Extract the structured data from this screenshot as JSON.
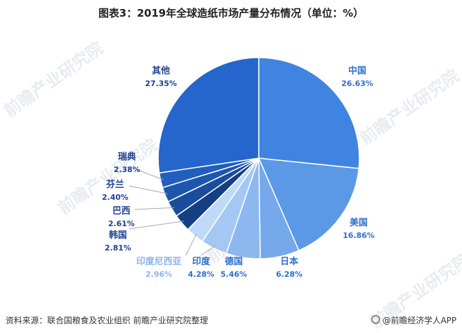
{
  "title": "图表3：2019年全球造纸市场产量分布情况（单位：%）",
  "watermark": "前瞻产业研究院",
  "footer": {
    "source": "资料来源：联合国粮食及农业组织 前瞻产业研究院整理",
    "brand": "@前瞻经济学人APP"
  },
  "colors": {
    "dark_label": "#1f3f8f",
    "blue_label": "#2f6fd0",
    "light_label": "#8ab4ec"
  },
  "chart_data": {
    "type": "pie",
    "title": "图表3：2019年全球造纸市场产量分布情况（单位：%）",
    "unit": "%",
    "slices": [
      {
        "name": "中国",
        "value": 26.63,
        "value_label": "26.63%",
        "color": "#3f84e0",
        "label_style": "blue"
      },
      {
        "name": "美国",
        "value": 16.86,
        "value_label": "16.86%",
        "color": "#5b99e6",
        "label_style": "blue"
      },
      {
        "name": "日本",
        "value": 6.28,
        "value_label": "6.28%",
        "color": "#75a9ec",
        "label_style": "blue"
      },
      {
        "name": "德国",
        "value": 5.46,
        "value_label": "5.46%",
        "color": "#8cb8ef",
        "label_style": "blue"
      },
      {
        "name": "印度",
        "value": 4.28,
        "value_label": "4.28%",
        "color": "#a4c8f3",
        "label_style": "blue"
      },
      {
        "name": "印度尼西亚",
        "value": 2.96,
        "value_label": "2.96%",
        "color": "#c0d9f7",
        "label_style": "light"
      },
      {
        "name": "韩国",
        "value": 2.81,
        "value_label": "2.81%",
        "color": "#153f84",
        "label_style": "dark"
      },
      {
        "name": "巴西",
        "value": 2.61,
        "value_label": "2.61%",
        "color": "#1a4d9c",
        "label_style": "dark"
      },
      {
        "name": "芬兰",
        "value": 2.4,
        "value_label": "2.40%",
        "color": "#1d56ad",
        "label_style": "dark"
      },
      {
        "name": "瑞典",
        "value": 2.38,
        "value_label": "2.38%",
        "color": "#205fbd",
        "label_style": "dark"
      },
      {
        "name": "其他",
        "value": 27.35,
        "value_label": "27.35%",
        "color": "#2466cc",
        "label_style": "dark"
      }
    ]
  }
}
